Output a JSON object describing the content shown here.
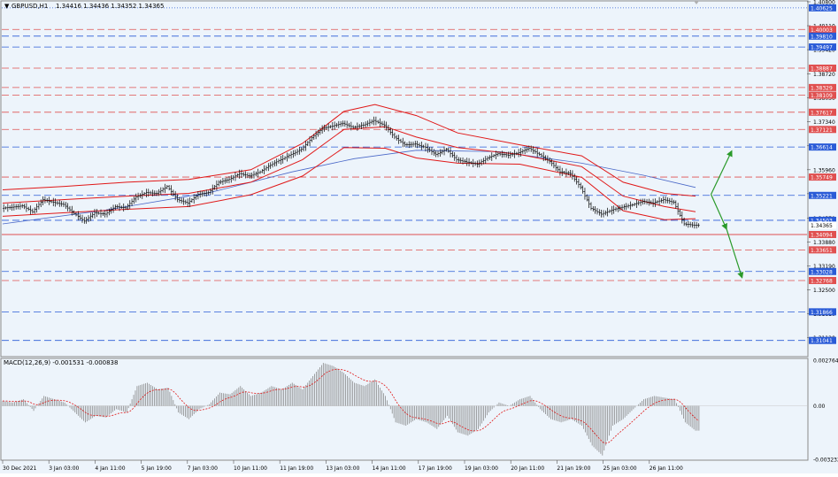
{
  "header": {
    "symbol_label": "GBPUSD,H1",
    "ohlc": "1.34416 1.34436 1.34352 1.34365",
    "macd_label": "MACD(12,26,9) -0.001531 -0.000838"
  },
  "colors": {
    "background": "#edf4fb",
    "red_level": "#e05050",
    "blue_level": "#2a5bd7",
    "bollinger": "#e01818",
    "moving_average": "#4a68c8",
    "candles": "#000000",
    "macd_hist": "#7a7a7a",
    "macd_signal": "#e01818",
    "arrow": "#2a9a2a"
  },
  "chart_data": {
    "type": "candlestick",
    "symbol": "GBPUSD",
    "timeframe": "H1",
    "ylim": [
      1.306,
      1.408
    ],
    "price_ticks": [
      "1.40800",
      "1.40110",
      "1.39420",
      "1.38720",
      "1.38030",
      "1.37340",
      "1.36650",
      "1.35960",
      "1.35270",
      "1.34570",
      "1.33880",
      "1.33190",
      "1.32500",
      "1.31810",
      "1.31120"
    ],
    "x_labels": [
      "30 Dec 2021",
      "3 Jan 03:00",
      "4 Jan 11:00",
      "5 Jan 19:00",
      "7 Jan 03:00",
      "10 Jan 11:00",
      "11 Jan 19:00",
      "13 Jan 03:00",
      "14 Jan 11:00",
      "17 Jan 19:00",
      "19 Jan 03:00",
      "20 Jan 11:00",
      "21 Jan 19:00",
      "25 Jan 03:00",
      "26 Jan 11:00"
    ],
    "levels": [
      {
        "price": 1.40625,
        "label": "1.40625",
        "color": "blue",
        "style": "dot"
      },
      {
        "price": 1.40003,
        "label": "1.40003",
        "color": "red",
        "style": "dash"
      },
      {
        "price": 1.3981,
        "label": "1.39810",
        "color": "blue",
        "style": "dash"
      },
      {
        "price": 1.39497,
        "label": "1.39497",
        "color": "blue",
        "style": "dash"
      },
      {
        "price": 1.38887,
        "label": "1.38887",
        "color": "red",
        "style": "dash"
      },
      {
        "price": 1.38329,
        "label": "1.38329",
        "color": "red",
        "style": "dash"
      },
      {
        "price": 1.38109,
        "label": "1.38109",
        "color": "red",
        "style": "dash"
      },
      {
        "price": 1.37617,
        "label": "1.37617",
        "color": "red",
        "style": "dash"
      },
      {
        "price": 1.37121,
        "label": "1.37121",
        "color": "red",
        "style": "dash"
      },
      {
        "price": 1.36614,
        "label": "1.36614",
        "color": "blue",
        "style": "dash"
      },
      {
        "price": 1.35749,
        "label": "1.35749",
        "color": "red",
        "style": "dash"
      },
      {
        "price": 1.35221,
        "label": "1.35221",
        "color": "blue",
        "style": "dash"
      },
      {
        "price": 1.34503,
        "label": "1.34503",
        "color": "blue",
        "style": "dash"
      },
      {
        "price": 1.34365,
        "label": "1.34365",
        "color": "gray",
        "style": "none"
      },
      {
        "price": 1.34094,
        "label": "1.34094",
        "color": "red",
        "style": "solid"
      },
      {
        "price": 1.33651,
        "label": "1.33651",
        "color": "red",
        "style": "dash"
      },
      {
        "price": 1.33028,
        "label": "1.33028",
        "color": "blue",
        "style": "dash"
      },
      {
        "price": 1.32768,
        "label": "1.32768",
        "color": "red",
        "style": "dash"
      },
      {
        "price": 1.31866,
        "label": "1.31866",
        "color": "blue",
        "style": "dash"
      },
      {
        "price": 1.31041,
        "label": "1.31041",
        "color": "blue",
        "style": "dash"
      }
    ],
    "macd": {
      "ylim": [
        -0.003232,
        0.002764
      ],
      "ticks": [
        "0.002764",
        "0.00",
        "-0.003232"
      ]
    },
    "price_path": [
      [
        0,
        1.3485
      ],
      [
        1,
        1.3488
      ],
      [
        2,
        1.3492
      ],
      [
        3,
        1.3475
      ],
      [
        4,
        1.351
      ],
      [
        5,
        1.3502
      ],
      [
        6,
        1.3496
      ],
      [
        7,
        1.347
      ],
      [
        8,
        1.3448
      ],
      [
        9,
        1.3472
      ],
      [
        10,
        1.3468
      ],
      [
        11,
        1.349
      ],
      [
        12,
        1.3486
      ],
      [
        13,
        1.3518
      ],
      [
        14,
        1.353
      ],
      [
        15,
        1.3528
      ],
      [
        16,
        1.3548
      ],
      [
        17,
        1.351
      ],
      [
        18,
        1.35
      ],
      [
        19,
        1.3525
      ],
      [
        20,
        1.353
      ],
      [
        21,
        1.356
      ],
      [
        22,
        1.3568
      ],
      [
        23,
        1.3585
      ],
      [
        24,
        1.3578
      ],
      [
        25,
        1.359
      ],
      [
        26,
        1.361
      ],
      [
        27,
        1.3625
      ],
      [
        28,
        1.364
      ],
      [
        29,
        1.3655
      ],
      [
        30,
        1.3688
      ],
      [
        31,
        1.3715
      ],
      [
        32,
        1.3722
      ],
      [
        33,
        1.373
      ],
      [
        34,
        1.3718
      ],
      [
        35,
        1.3725
      ],
      [
        36,
        1.3738
      ],
      [
        37,
        1.3725
      ],
      [
        38,
        1.369
      ],
      [
        39,
        1.3668
      ],
      [
        40,
        1.367
      ],
      [
        41,
        1.366
      ],
      [
        42,
        1.364
      ],
      [
        43,
        1.3655
      ],
      [
        44,
        1.3625
      ],
      [
        45,
        1.3618
      ],
      [
        46,
        1.3612
      ],
      [
        47,
        1.363
      ],
      [
        48,
        1.3642
      ],
      [
        49,
        1.3638
      ],
      [
        50,
        1.3645
      ],
      [
        51,
        1.3658
      ],
      [
        52,
        1.364
      ],
      [
        53,
        1.362
      ],
      [
        54,
        1.359
      ],
      [
        55,
        1.3585
      ],
      [
        56,
        1.3545
      ],
      [
        57,
        1.3485
      ],
      [
        58,
        1.3468
      ],
      [
        59,
        1.348
      ],
      [
        60,
        1.3488
      ],
      [
        61,
        1.3495
      ],
      [
        62,
        1.3505
      ],
      [
        63,
        1.35
      ],
      [
        64,
        1.351
      ],
      [
        65,
        1.3502
      ],
      [
        66,
        1.344
      ],
      [
        67,
        1.3436
      ]
    ],
    "bb_upper": [
      [
        0,
        1.3538
      ],
      [
        6,
        1.3548
      ],
      [
        12,
        1.356
      ],
      [
        18,
        1.3568
      ],
      [
        24,
        1.3596
      ],
      [
        29,
        1.3672
      ],
      [
        33,
        1.3764
      ],
      [
        36,
        1.3784
      ],
      [
        40,
        1.3752
      ],
      [
        44,
        1.3702
      ],
      [
        50,
        1.3668
      ],
      [
        56,
        1.3636
      ],
      [
        60,
        1.356
      ],
      [
        64,
        1.3528
      ],
      [
        67,
        1.352
      ]
    ],
    "bb_middle": [
      [
        0,
        1.35
      ],
      [
        6,
        1.351
      ],
      [
        12,
        1.352
      ],
      [
        18,
        1.3528
      ],
      [
        24,
        1.356
      ],
      [
        29,
        1.3625
      ],
      [
        33,
        1.3712
      ],
      [
        37,
        1.372
      ],
      [
        40,
        1.369
      ],
      [
        44,
        1.366
      ],
      [
        50,
        1.364
      ],
      [
        56,
        1.3605
      ],
      [
        60,
        1.352
      ],
      [
        64,
        1.349
      ],
      [
        67,
        1.3475
      ]
    ],
    "bb_lower": [
      [
        0,
        1.3462
      ],
      [
        6,
        1.3472
      ],
      [
        12,
        1.3482
      ],
      [
        18,
        1.349
      ],
      [
        24,
        1.3524
      ],
      [
        29,
        1.3578
      ],
      [
        33,
        1.366
      ],
      [
        37,
        1.3658
      ],
      [
        40,
        1.363
      ],
      [
        44,
        1.3615
      ],
      [
        50,
        1.3612
      ],
      [
        56,
        1.3574
      ],
      [
        60,
        1.3478
      ],
      [
        64,
        1.3452
      ],
      [
        67,
        1.3455
      ]
    ],
    "ma_long": [
      [
        0,
        1.344
      ],
      [
        10,
        1.348
      ],
      [
        20,
        1.353
      ],
      [
        28,
        1.359
      ],
      [
        34,
        1.3628
      ],
      [
        40,
        1.3652
      ],
      [
        48,
        1.3648
      ],
      [
        56,
        1.3615
      ],
      [
        62,
        1.358
      ],
      [
        67,
        1.3545
      ]
    ],
    "macd_hist": [
      0.0003,
      0.0002,
      0.0004,
      -0.0003,
      0.0006,
      0.0004,
      0.0002,
      -0.0004,
      -0.001,
      -0.0006,
      -0.0007,
      -0.0002,
      -0.0004,
      0.0012,
      0.0014,
      0.001,
      0.0011,
      -0.0004,
      -0.0008,
      -0.0002,
      0.0001,
      0.0008,
      0.0007,
      0.0012,
      0.0006,
      0.0008,
      0.0012,
      0.001,
      0.0014,
      0.001,
      0.0018,
      0.0026,
      0.0024,
      0.002,
      0.0014,
      0.0012,
      0.0016,
      0.0006,
      -0.001,
      -0.0012,
      -0.0008,
      -0.001,
      -0.0014,
      -0.0006,
      -0.0016,
      -0.0018,
      -0.0014,
      -0.0004,
      0.0002,
      0.0,
      0.0004,
      0.0006,
      -0.0002,
      -0.0008,
      -0.001,
      -0.0008,
      -0.0012,
      -0.0024,
      -0.003,
      -0.0012,
      -0.0008,
      -0.0002,
      0.0004,
      0.0006,
      0.0005,
      0.0004,
      -0.001,
      -0.0015
    ],
    "arrows": [
      {
        "from": [
          68.5,
          1.3525
        ],
        "to": [
          70.5,
          1.365
        ]
      },
      {
        "from": [
          68.5,
          1.3525
        ],
        "to": [
          70,
          1.3425
        ]
      },
      {
        "from": [
          70,
          1.3425
        ],
        "to": [
          71.5,
          1.3285
        ]
      }
    ]
  }
}
